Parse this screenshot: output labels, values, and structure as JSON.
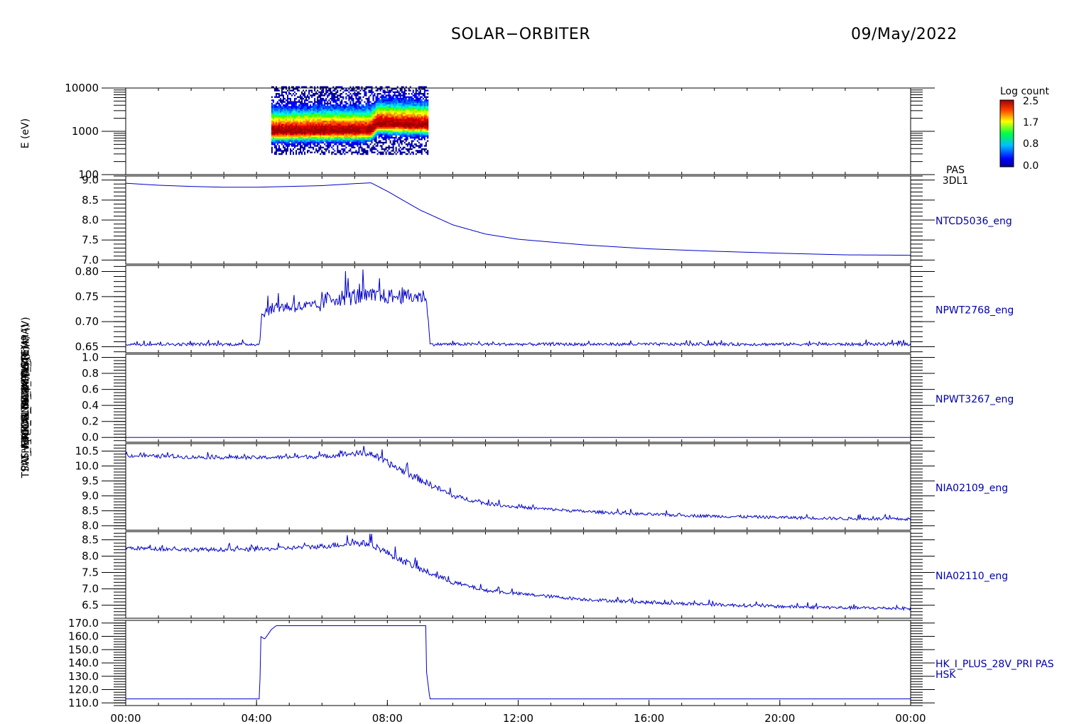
{
  "header": {
    "title": "SOLAR−ORBITER",
    "date": "09/May/2022"
  },
  "colorbar": {
    "title": "Log count",
    "ticks": [
      "2.5",
      "1.7",
      "0.8",
      "0.0"
    ]
  },
  "x_ticks": [
    "00:00",
    "04:00",
    "08:00",
    "12:00",
    "16:00",
    "20:00",
    "00:00"
  ],
  "chart_data": [
    {
      "type": "heatmap",
      "ylabel": "E (eV)",
      "scale": "log",
      "ylim": [
        100,
        10000
      ],
      "ticks": [
        100,
        1000,
        10000
      ],
      "right_label": [
        "PAS",
        "3DL1"
      ],
      "x_range_hours": [
        4.45,
        9.25
      ],
      "band_center_ev": [
        {
          "x": 4.5,
          "e": 1000
        },
        {
          "x": 7.5,
          "e": 1050
        },
        {
          "x": 7.7,
          "e": 1500
        },
        {
          "x": 9.2,
          "e": 1400
        }
      ],
      "colormap": "rainbow"
    },
    {
      "type": "line",
      "ylabel": "Approx Temp (DegC)",
      "right_label": [
        "NTCD5036_eng"
      ],
      "ylim": [
        6.9,
        9.1
      ],
      "ticks": [
        7.0,
        7.5,
        8.0,
        8.5,
        9.0
      ],
      "x": [
        0,
        1,
        2,
        3,
        4,
        5,
        6,
        7,
        7.5,
        8,
        9,
        10,
        11,
        12,
        14,
        16,
        18,
        20,
        22,
        24
      ],
      "y": [
        8.92,
        8.87,
        8.84,
        8.82,
        8.82,
        8.84,
        8.86,
        8.91,
        8.93,
        8.72,
        8.25,
        7.88,
        7.65,
        7.52,
        7.38,
        7.28,
        7.22,
        7.17,
        7.13,
        7.12
      ]
    },
    {
      "type": "line",
      "ylabel": "TSW_V_HK_ANA_AMP1_TEMP (V)",
      "right_label": [
        "NPWT2768_eng"
      ],
      "ylim": [
        0.638,
        0.812
      ],
      "ticks": [
        0.65,
        0.7,
        0.75,
        0.8
      ],
      "x": [
        0,
        4.1,
        4.15,
        4.3,
        4.6,
        6,
        6.1,
        7,
        8,
        9.2,
        9.3,
        12,
        16,
        20,
        24
      ],
      "y": [
        0.655,
        0.655,
        0.715,
        0.72,
        0.73,
        0.73,
        0.745,
        0.75,
        0.75,
        0.75,
        0.655,
        0.655,
        0.655,
        0.655,
        0.655
      ],
      "noise": [
        0.003,
        0.003,
        0.008,
        0.01,
        0.012,
        0.012,
        0.015,
        0.018,
        0.015,
        0.015,
        0.003,
        0.003,
        0.003,
        0.003,
        0.003
      ]
    },
    {
      "type": "line",
      "ylabel": "TDS_SWAV (V)",
      "right_label": [
        "NPWT3267_eng"
      ],
      "ylim": [
        -0.06,
        1.04
      ],
      "ticks": [
        0.0,
        0.2,
        0.4,
        0.6,
        0.8,
        1.0
      ],
      "x": [
        0,
        24
      ],
      "y": [
        0.0,
        0.0
      ]
    },
    {
      "type": "line",
      "ylabel": "PCDU_MC14 (mA)",
      "right_label": [
        "NIA02109_eng"
      ],
      "ylim": [
        7.85,
        10.75
      ],
      "ticks": [
        8.0,
        8.5,
        9.0,
        9.5,
        10.0,
        10.5
      ],
      "x": [
        0,
        2,
        4,
        6,
        7,
        7.5,
        8,
        9,
        10,
        11,
        12,
        14,
        16,
        18,
        20,
        22,
        24
      ],
      "y": [
        10.35,
        10.3,
        10.28,
        10.32,
        10.42,
        10.42,
        10.1,
        9.55,
        9.0,
        8.75,
        8.62,
        8.48,
        8.38,
        8.32,
        8.28,
        8.24,
        8.22
      ],
      "noise": [
        0.06,
        0.06,
        0.06,
        0.07,
        0.1,
        0.1,
        0.12,
        0.12,
        0.08,
        0.06,
        0.05,
        0.05,
        0.05,
        0.05,
        0.05,
        0.05,
        0.05
      ]
    },
    {
      "type": "line",
      "ylabel": "THERMAL_HTR_PAS (mA)",
      "right_label": [
        "NIA02110_eng"
      ],
      "ylim": [
        6.1,
        8.75
      ],
      "ticks": [
        6.5,
        7.0,
        7.5,
        8.0,
        8.5
      ],
      "x": [
        0,
        2,
        4,
        5,
        6,
        7,
        7.5,
        8,
        9,
        10,
        11,
        12,
        14,
        16,
        18,
        20,
        22,
        24
      ],
      "y": [
        8.25,
        8.2,
        8.2,
        8.25,
        8.3,
        8.4,
        8.38,
        8.1,
        7.6,
        7.2,
        6.95,
        6.85,
        6.68,
        6.58,
        6.52,
        6.46,
        6.42,
        6.4
      ],
      "noise": [
        0.06,
        0.06,
        0.06,
        0.06,
        0.08,
        0.1,
        0.1,
        0.1,
        0.1,
        0.07,
        0.05,
        0.05,
        0.05,
        0.05,
        0.05,
        0.05,
        0.05,
        0.05
      ]
    },
    {
      "type": "line",
      "ylabel": "PAS_HK_I_PLUS_28V_PRI (mA)",
      "right_label": [
        "HK_I_PLUS_28V_PRI PAS",
        "HSK"
      ],
      "ylim": [
        108,
        172
      ],
      "ticks": [
        110,
        120,
        130,
        140,
        150,
        160,
        170
      ],
      "x": [
        0,
        4.1,
        4.12,
        4.25,
        4.45,
        4.6,
        5,
        9.18,
        9.2,
        9.3,
        24
      ],
      "y": [
        113,
        113,
        160,
        158,
        165,
        168,
        168,
        168,
        133,
        113,
        113
      ]
    }
  ]
}
